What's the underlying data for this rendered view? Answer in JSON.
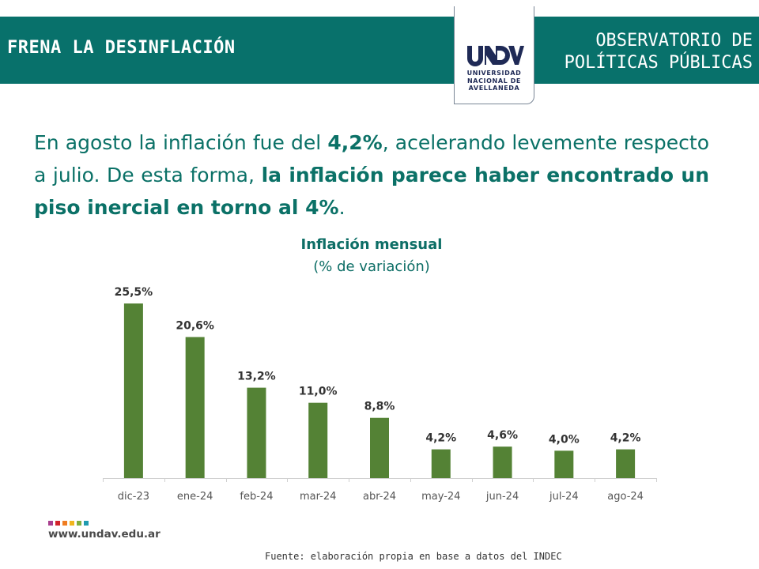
{
  "header": {
    "title": "FRENA LA DESINFLACIÓN",
    "observatorio_line1": "OBSERVATORIO DE",
    "observatorio_line2": "POLÍTICAS PÚBLICAS",
    "band_color": "#08716b"
  },
  "logo": {
    "wordmark": "UNDAV",
    "line1": "UNIVERSIDAD",
    "line2": "NACIONAL DE",
    "line3": "AVELLANEDA"
  },
  "lead": {
    "p1": "En agosto la inflación fue del ",
    "p1_bold": "4,2%",
    "p2": ",   acelerando levemente respecto a julio. De esta forma, ",
    "p2_bold": "la inflación parece haber encontrado un piso inercial en torno al 4%",
    "p3": "."
  },
  "chart_data": {
    "type": "bar",
    "title": "Inflación mensual",
    "subtitle": "(% de variación)",
    "xlabel": "",
    "ylabel": "",
    "categories": [
      "dic-23",
      "ene-24",
      "feb-24",
      "mar-24",
      "abr-24",
      "may-24",
      "jun-24",
      "jul-24",
      "ago-24"
    ],
    "values": [
      25.5,
      20.6,
      13.2,
      11.0,
      8.8,
      4.2,
      4.6,
      4.0,
      4.2
    ],
    "labels": [
      "25,5%",
      "20,6%",
      "13,2%",
      "11,0%",
      "8,8%",
      "4,2%",
      "4,6%",
      "4,0%",
      "4,2%"
    ],
    "ylim": [
      0,
      25.5
    ],
    "grid": false,
    "legend": "none",
    "bar_color": "#548235"
  },
  "footer": {
    "url": "www.undav.edu.ar",
    "dot_colors": [
      "#a83f8f",
      "#d2232a",
      "#ef7d22",
      "#f1b51c",
      "#7fae3e",
      "#1f9bb0"
    ],
    "source": "Fuente: elaboración propia en base a datos del INDEC"
  }
}
